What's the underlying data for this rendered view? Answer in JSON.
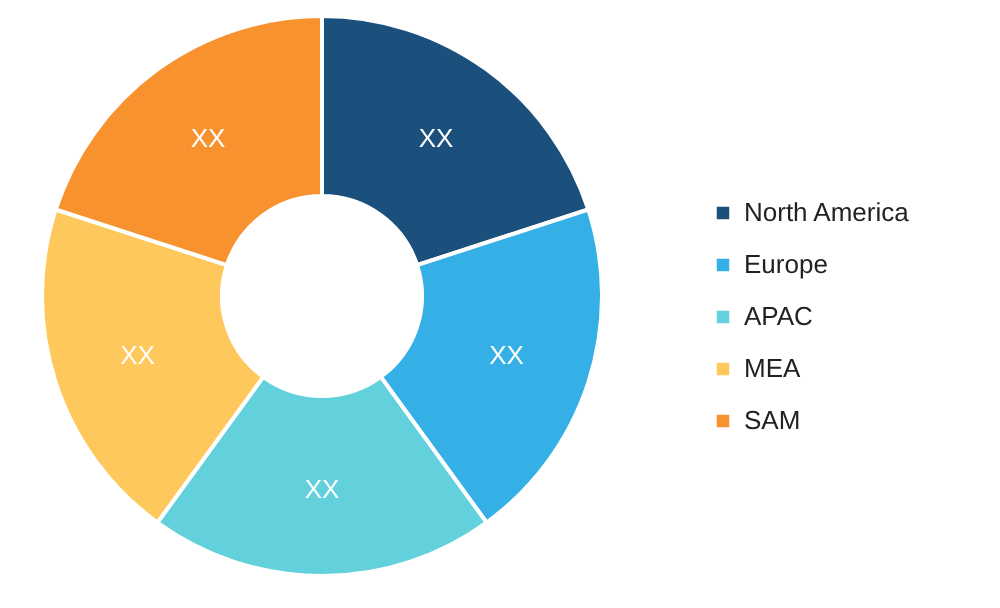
{
  "chart_data": {
    "type": "donut",
    "categories": [
      "North America",
      "Europe",
      "APAC",
      "MEA",
      "SAM"
    ],
    "values": [
      20,
      20,
      20,
      20,
      20
    ],
    "value_labels": [
      "XX",
      "XX",
      "XX",
      "XX",
      "XX"
    ],
    "colors": [
      "#1b4f7c",
      "#35b0e6",
      "#63d1dc",
      "#ffc85c",
      "#f7922f"
    ],
    "legend": "right"
  }
}
